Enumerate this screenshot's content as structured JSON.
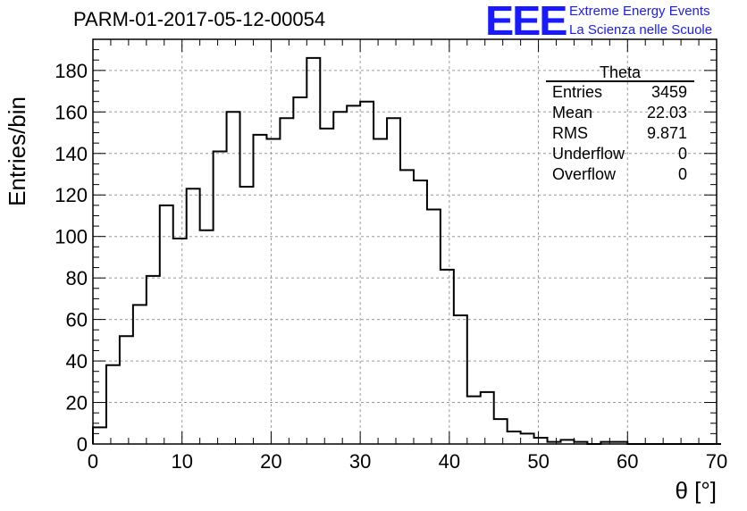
{
  "header": {
    "run_title": "PARM-01-2017-05-12-00054",
    "logo_text": "EEE",
    "logo_line1": "Extreme Energy Events",
    "logo_line2": "La Scienza nelle Scuole",
    "logo_color": "#1a1aff"
  },
  "stats_box": {
    "title": "Theta",
    "rows": [
      {
        "label": "Entries",
        "value": "3459"
      },
      {
        "label": "Mean",
        "value": "22.03"
      },
      {
        "label": "RMS",
        "value": "9.871"
      },
      {
        "label": "Underflow",
        "value": "0"
      },
      {
        "label": "Overflow",
        "value": "0"
      }
    ]
  },
  "chart_data": {
    "type": "histogram",
    "xlabel": "θ [°]",
    "ylabel": "Entries/bin",
    "xlim": [
      0,
      70
    ],
    "ylim": [
      0,
      195
    ],
    "grid": true,
    "bin_width": 1.5,
    "bin_start": 0,
    "values": [
      8,
      38,
      52,
      67,
      81,
      115,
      99,
      123,
      103,
      141,
      160,
      124,
      149,
      147,
      157,
      167,
      186,
      152,
      160,
      163,
      165,
      147,
      157,
      132,
      127,
      113,
      84,
      62,
      23,
      25,
      12,
      6,
      5,
      3,
      1,
      2,
      1,
      0,
      1,
      1,
      0,
      0,
      0,
      0,
      0,
      0,
      0
    ],
    "x_ticks": [
      0,
      10,
      20,
      30,
      40,
      50,
      60,
      70
    ],
    "y_ticks": [
      0,
      20,
      40,
      60,
      80,
      100,
      120,
      140,
      160,
      180
    ]
  }
}
